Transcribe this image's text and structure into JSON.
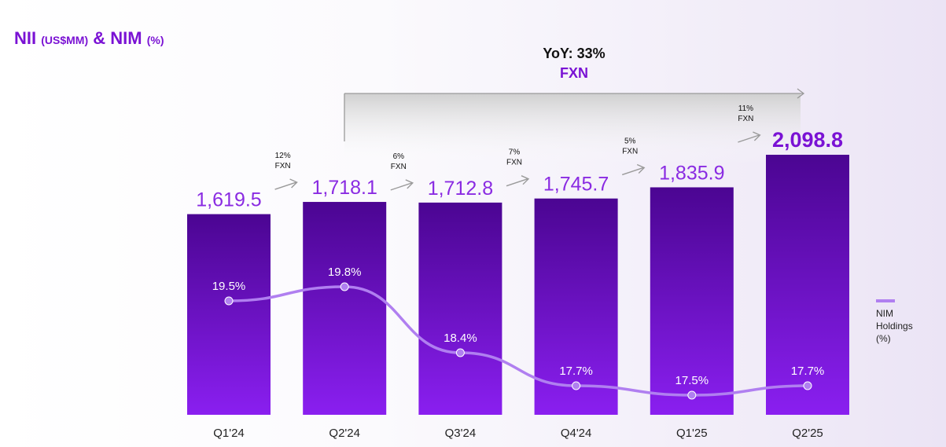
{
  "title": {
    "main": "NII",
    "main_unit": "(US$MM)",
    "amp": "&",
    "second": "NIM",
    "second_unit": "(%)"
  },
  "yoy": {
    "label": "YoY: 33%",
    "sub": "FXN"
  },
  "colors": {
    "bar_top": "#4b0592",
    "bar_bottom": "#8a1ff0",
    "accent": "#7a12d4",
    "nim_line": "#b07ff0",
    "arrow": "#9a9a9a"
  },
  "chart_data": {
    "type": "bar",
    "categories": [
      "Q1'24",
      "Q2'24",
      "Q3'24",
      "Q4'24",
      "Q1'25",
      "Q2'25"
    ],
    "series": [
      {
        "values": [
          1619.5,
          1718.1,
          1712.8,
          1745.7,
          1835.9,
          2098.8
        ],
        "labels": [
          "1,619.5",
          "1,718.1",
          "1,712.8",
          "1,745.7",
          "1,835.9",
          "2,098.8"
        ]
      },
      {
        "name": "NIM Holdings (%)",
        "type": "line",
        "values": [
          19.5,
          19.8,
          18.4,
          17.7,
          17.5,
          17.7
        ],
        "labels": [
          "19.5%",
          "19.8%",
          "18.4%",
          "17.7%",
          "17.5%",
          "17.7%"
        ]
      }
    ],
    "growth_annotations": [
      {
        "pct": "12%",
        "basis": "FXN"
      },
      {
        "pct": "6%",
        "basis": "FXN"
      },
      {
        "pct": "7%",
        "basis": "FXN"
      },
      {
        "pct": "5%",
        "basis": "FXN"
      },
      {
        "pct": "11%",
        "basis": "FXN"
      }
    ],
    "legend": {
      "line1": "NIM",
      "line2": "Holdings",
      "line3": "(%)",
      "position": "right"
    }
  }
}
